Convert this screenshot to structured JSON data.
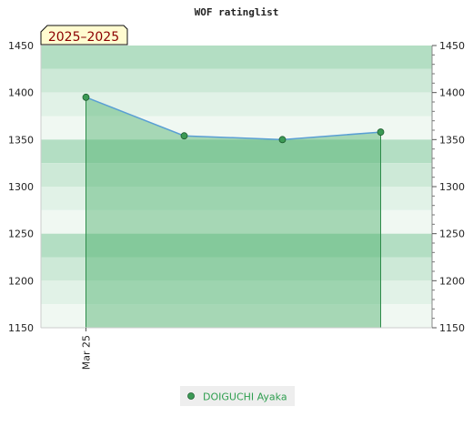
{
  "chart_data": {
    "type": "line",
    "title": "WOF ratinglist",
    "badge": "2025–2025",
    "ylim": [
      1150,
      1450
    ],
    "yticks": [
      1150,
      1200,
      1250,
      1300,
      1350,
      1400,
      1450
    ],
    "x": [
      1,
      2,
      3,
      4
    ],
    "xticks": [
      {
        "x": 1,
        "label": "Mar 25"
      }
    ],
    "series": [
      {
        "name": "DOIGUCHI Ayaka",
        "values": [
          1395,
          1354,
          1350,
          1358
        ]
      }
    ],
    "legend_position": "bottom-center",
    "colors": {
      "line": "#5a9fd4",
      "area": "#4caf6a",
      "marker": "#3c9a55",
      "band_dark": "#b3dec3",
      "band_mid": "#cde9d7",
      "band_light": "#e1f2e7",
      "band_lightest": "#f0f8f2",
      "badge_bg": "#fffbd0"
    }
  }
}
